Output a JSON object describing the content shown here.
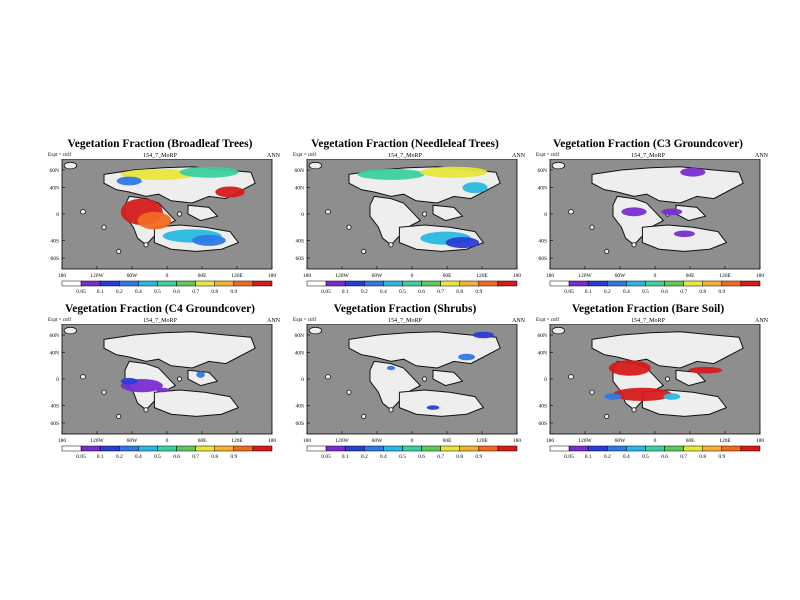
{
  "run_id": "154_7_MoRP",
  "season": "ANN",
  "left_sub": "Expt = ctrlf",
  "lat_ticks": [
    "60N",
    "40N",
    "0",
    "40S",
    "60S"
  ],
  "lon_ticks": [
    "180",
    "120W",
    "60W",
    "0",
    "60E",
    "120E",
    "180"
  ],
  "colorbar_levels": [
    "0.05",
    "0.1",
    "0.2",
    "0.4",
    "0.5",
    "0.6",
    "0.7",
    "0.8",
    "0.9"
  ],
  "colorbar_colors": [
    "#ffffff",
    "#7a2ccf",
    "#2a3cd6",
    "#2f78e6",
    "#29b9e0",
    "#3ad0a0",
    "#5ec85a",
    "#e8e63c",
    "#f4b133",
    "#f06a20",
    "#d61b1b"
  ],
  "panels": [
    {
      "title": "Vegetation Fraction (Broadleaf Trees)"
    },
    {
      "title": "Vegetation Fraction (Needleleaf Trees)"
    },
    {
      "title": "Vegetation Fraction (C3 Groundcover)"
    },
    {
      "title": "Vegetation Fraction (C4 Groundcover)"
    },
    {
      "title": "Vegetation Fraction (Shrubs)"
    },
    {
      "title": "Vegetation Fraction (Bare Soil)"
    }
  ]
}
